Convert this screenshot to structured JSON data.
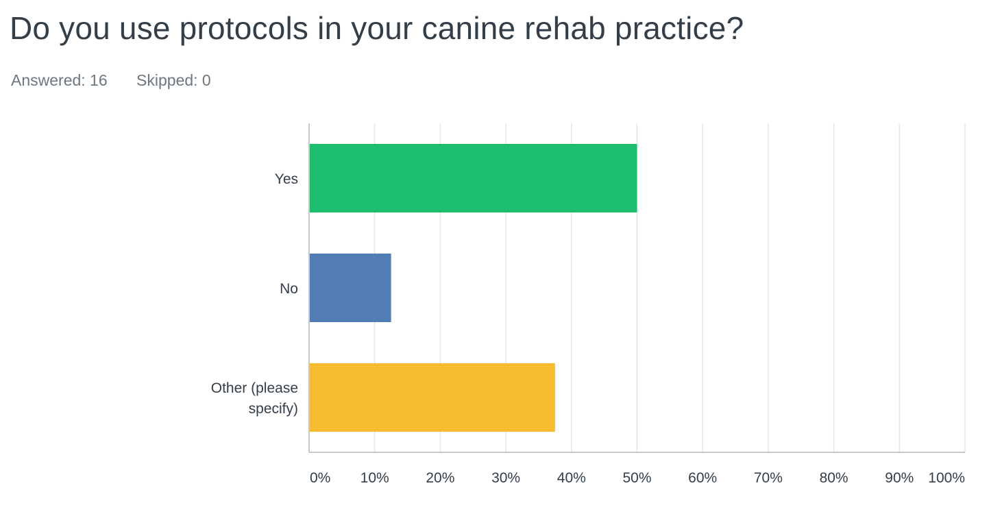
{
  "question": {
    "title": "Do you use protocols in your canine rehab practice?",
    "answered_label": "Answered: 16",
    "skipped_label": "Skipped: 0"
  },
  "chart_data": {
    "type": "bar",
    "orientation": "horizontal",
    "title": "",
    "xlabel": "",
    "ylabel": "",
    "categories": [
      {
        "lines": [
          "Yes"
        ]
      },
      {
        "lines": [
          "No"
        ]
      },
      {
        "lines": [
          "Other (please",
          "specify)"
        ]
      }
    ],
    "values": [
      50,
      12.5,
      37.5
    ],
    "colors": [
      "#1ebe71",
      "#527db4",
      "#f6bc2d"
    ],
    "xlim": [
      0,
      100
    ],
    "ticks": [
      0,
      10,
      20,
      30,
      40,
      50,
      60,
      70,
      80,
      90,
      100
    ],
    "tick_labels": [
      "0%",
      "10%",
      "20%",
      "30%",
      "40%",
      "50%",
      "60%",
      "70%",
      "80%",
      "90%",
      "100%"
    ],
    "grid": true,
    "legend": "none"
  }
}
